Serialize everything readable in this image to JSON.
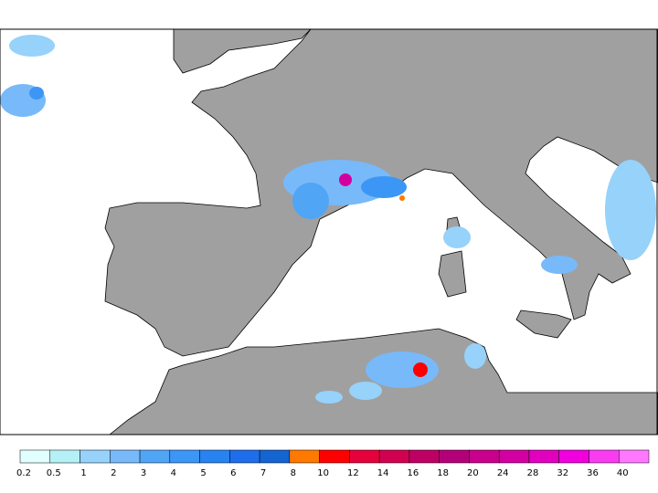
{
  "legend": {
    "labels": [
      0.2,
      0.5,
      1,
      2,
      3,
      4,
      5,
      6,
      7,
      8,
      10,
      12,
      14,
      16,
      18,
      20,
      24,
      28,
      32,
      36,
      40
    ],
    "colors": [
      "#e1ffff",
      "#b4f0f5",
      "#96d2fa",
      "#78b9fa",
      "#50a5f5",
      "#3c96f5",
      "#2882f0",
      "#1e6eeb",
      "#1464d2",
      "#ff7800",
      "#ff0000",
      "#e6003c",
      "#d20050",
      "#be0064",
      "#b40078",
      "#c8008c",
      "#d200a0",
      "#e100be",
      "#f000dc",
      "#fa3cf0",
      "#ff78ff"
    ]
  }
}
